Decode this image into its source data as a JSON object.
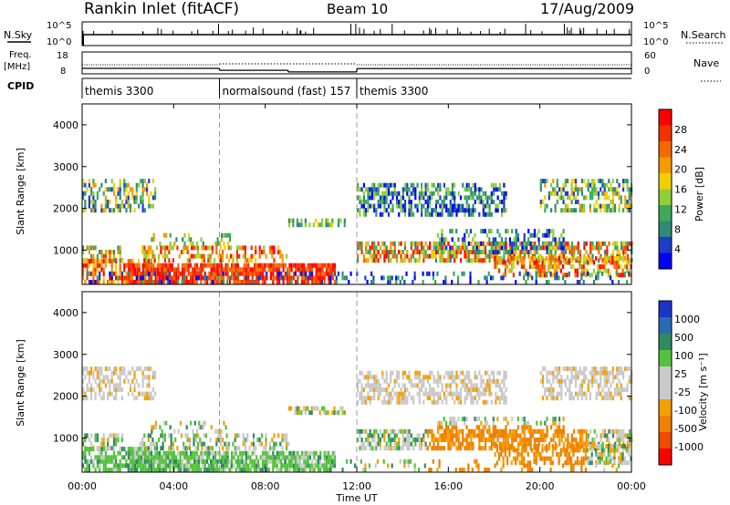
{
  "header": {
    "station": "Rankin Inlet (fitACF)",
    "beam": "Beam 10",
    "date": "17/Aug/2009"
  },
  "colors": {
    "power_scale": [
      "#0000ff",
      "#1e3cc8",
      "#2f8a7a",
      "#3caa5a",
      "#8fcf3a",
      "#f0d000",
      "#f59a00",
      "#f26a00",
      "#f03200",
      "#ff0000"
    ],
    "velocity_scale": [
      "#1a36c8",
      "#2a6ab4",
      "#2f8a60",
      "#54c23c",
      "#c9c9c9",
      "#c9c9c9",
      "#f5a000",
      "#f08000",
      "#f04a00",
      "#ff0000"
    ],
    "background_blob": "#ff7f50"
  },
  "chart_data": [
    {
      "type": "line",
      "panel": "nsky-nsearch",
      "left_label": "N.Sky",
      "right_label": "N.Search",
      "left_ticks": [
        "10^5",
        "10^0"
      ],
      "right_ticks": [
        "10^5",
        "10^0"
      ]
    },
    {
      "type": "line",
      "panel": "freq-nave",
      "left_label": "Freq.",
      "left_unit": "[MHz]",
      "right_label": "Nave",
      "left_ticks": [
        "18",
        "8"
      ],
      "right_ticks": [
        "60",
        "0"
      ],
      "freq_segments": [
        {
          "x": [
            0,
            6
          ],
          "y": 10.5
        },
        {
          "x": [
            6,
            9
          ],
          "y": 9.6
        },
        {
          "x": [
            9,
            12
          ],
          "y": 8.9
        },
        {
          "x": [
            12,
            24
          ],
          "y": 10.4
        }
      ]
    },
    {
      "type": "table",
      "panel": "cpid",
      "label": "CPID",
      "entries": [
        {
          "start": 0,
          "text": "themis 3300"
        },
        {
          "start": 6,
          "text": "normalsound (fast) 157"
        },
        {
          "start": 12,
          "text": "themis 3300"
        }
      ]
    },
    {
      "type": "heatmap",
      "panel": "power",
      "ylabel": "Slant Range [km]",
      "colorbar_label": "Power [dB]",
      "colorbar_ticks": [
        "28",
        "24",
        "20",
        "16",
        "12",
        "8",
        "4"
      ],
      "ylim": [
        180,
        4500
      ],
      "yticks": [
        "4000",
        "3000",
        "2000",
        "1000"
      ],
      "xlim": [
        0,
        24
      ]
    },
    {
      "type": "heatmap",
      "panel": "velocity",
      "ylabel": "Slant Range [km]",
      "colorbar_label": "Velocity [m s⁻¹]",
      "colorbar_ticks": [
        "1000",
        "500",
        "100",
        "25",
        "-25",
        "-100",
        "-500",
        "-1000"
      ],
      "ylim": [
        180,
        4500
      ],
      "yticks": [
        "4000",
        "3000",
        "2000",
        "1000"
      ],
      "xlim": [
        0,
        24
      ]
    }
  ],
  "x_axis": {
    "label": "Time UT",
    "ticks": [
      "00:00",
      "04:00",
      "08:00",
      "12:00",
      "16:00",
      "20:00",
      "00:00"
    ]
  }
}
